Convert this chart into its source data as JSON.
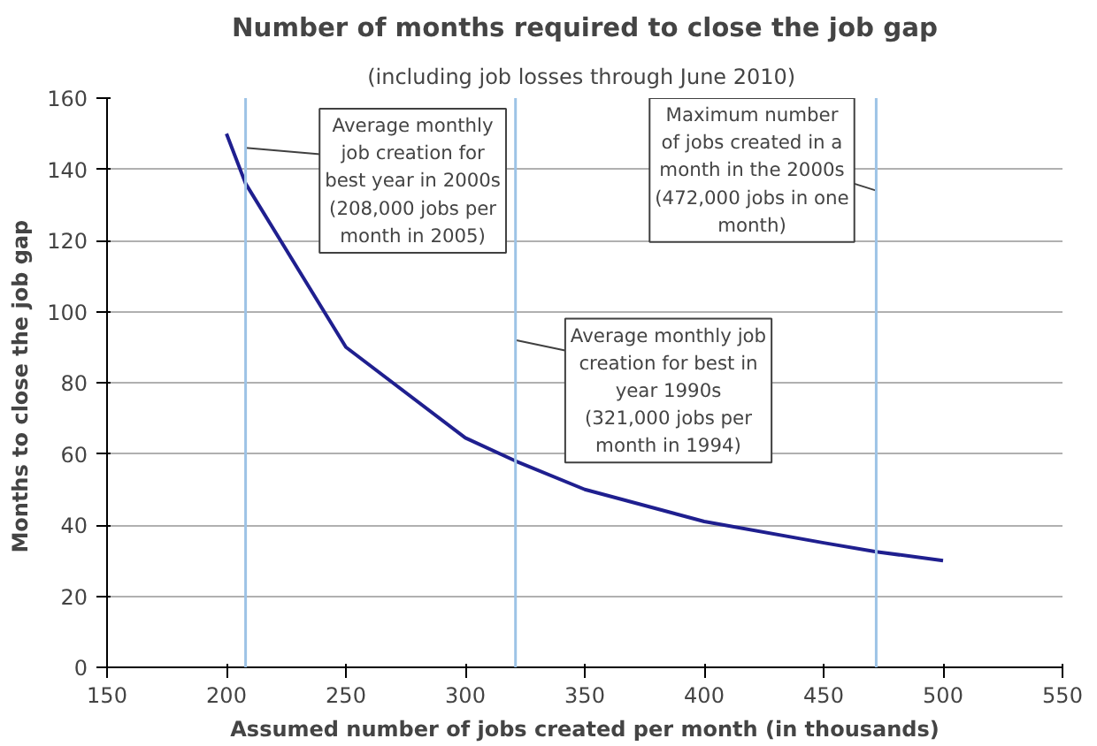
{
  "chart_data": {
    "type": "line",
    "title": "Number of months required to close the job gap",
    "subtitle": "(including job losses through June  2010)",
    "xlabel": "Assumed number of jobs created per month (in thousands)",
    "ylabel": "Months  to close the job gap",
    "x": [
      200,
      208,
      250,
      300,
      321,
      350,
      400,
      450,
      472,
      500
    ],
    "series": [
      {
        "color": "#1f1f8f",
        "values": [
          150,
          136,
          90,
          64.5,
          58,
          50,
          41,
          35,
          32.5,
          30
        ]
      }
    ],
    "xlim": [
      150,
      550
    ],
    "xticks": [
      150,
      200,
      250,
      300,
      350,
      400,
      450,
      500,
      550
    ],
    "ylim": [
      0,
      160
    ],
    "yticks": [
      0,
      20,
      40,
      60,
      80,
      100,
      120,
      140,
      160
    ],
    "grid": "y",
    "marker": "none",
    "line_style": "solid",
    "ref_lines": [
      {
        "axis": "x",
        "value": 208,
        "color": "#9dc3e6"
      },
      {
        "axis": "x",
        "value": 321,
        "color": "#9dc3e6"
      },
      {
        "axis": "x",
        "value": 472,
        "color": "#9dc3e6"
      }
    ],
    "annotations": [
      {
        "text": "Average monthly\njob creation for\nbest year in 2000s\n(208,000 jobs per\nmonth in 2005)",
        "x": 208,
        "y": 146
      },
      {
        "text": "Average monthly job\ncreation for best in\nyear 1990s\n(321,000 jobs per\nmonth in 1994)",
        "x": 321,
        "y": 92
      },
      {
        "text": "Maximum number\nof jobs created in a\nmonth in the 2000s\n(472,000 jobs in one\nmonth)",
        "x": 472,
        "y": 134
      }
    ]
  }
}
